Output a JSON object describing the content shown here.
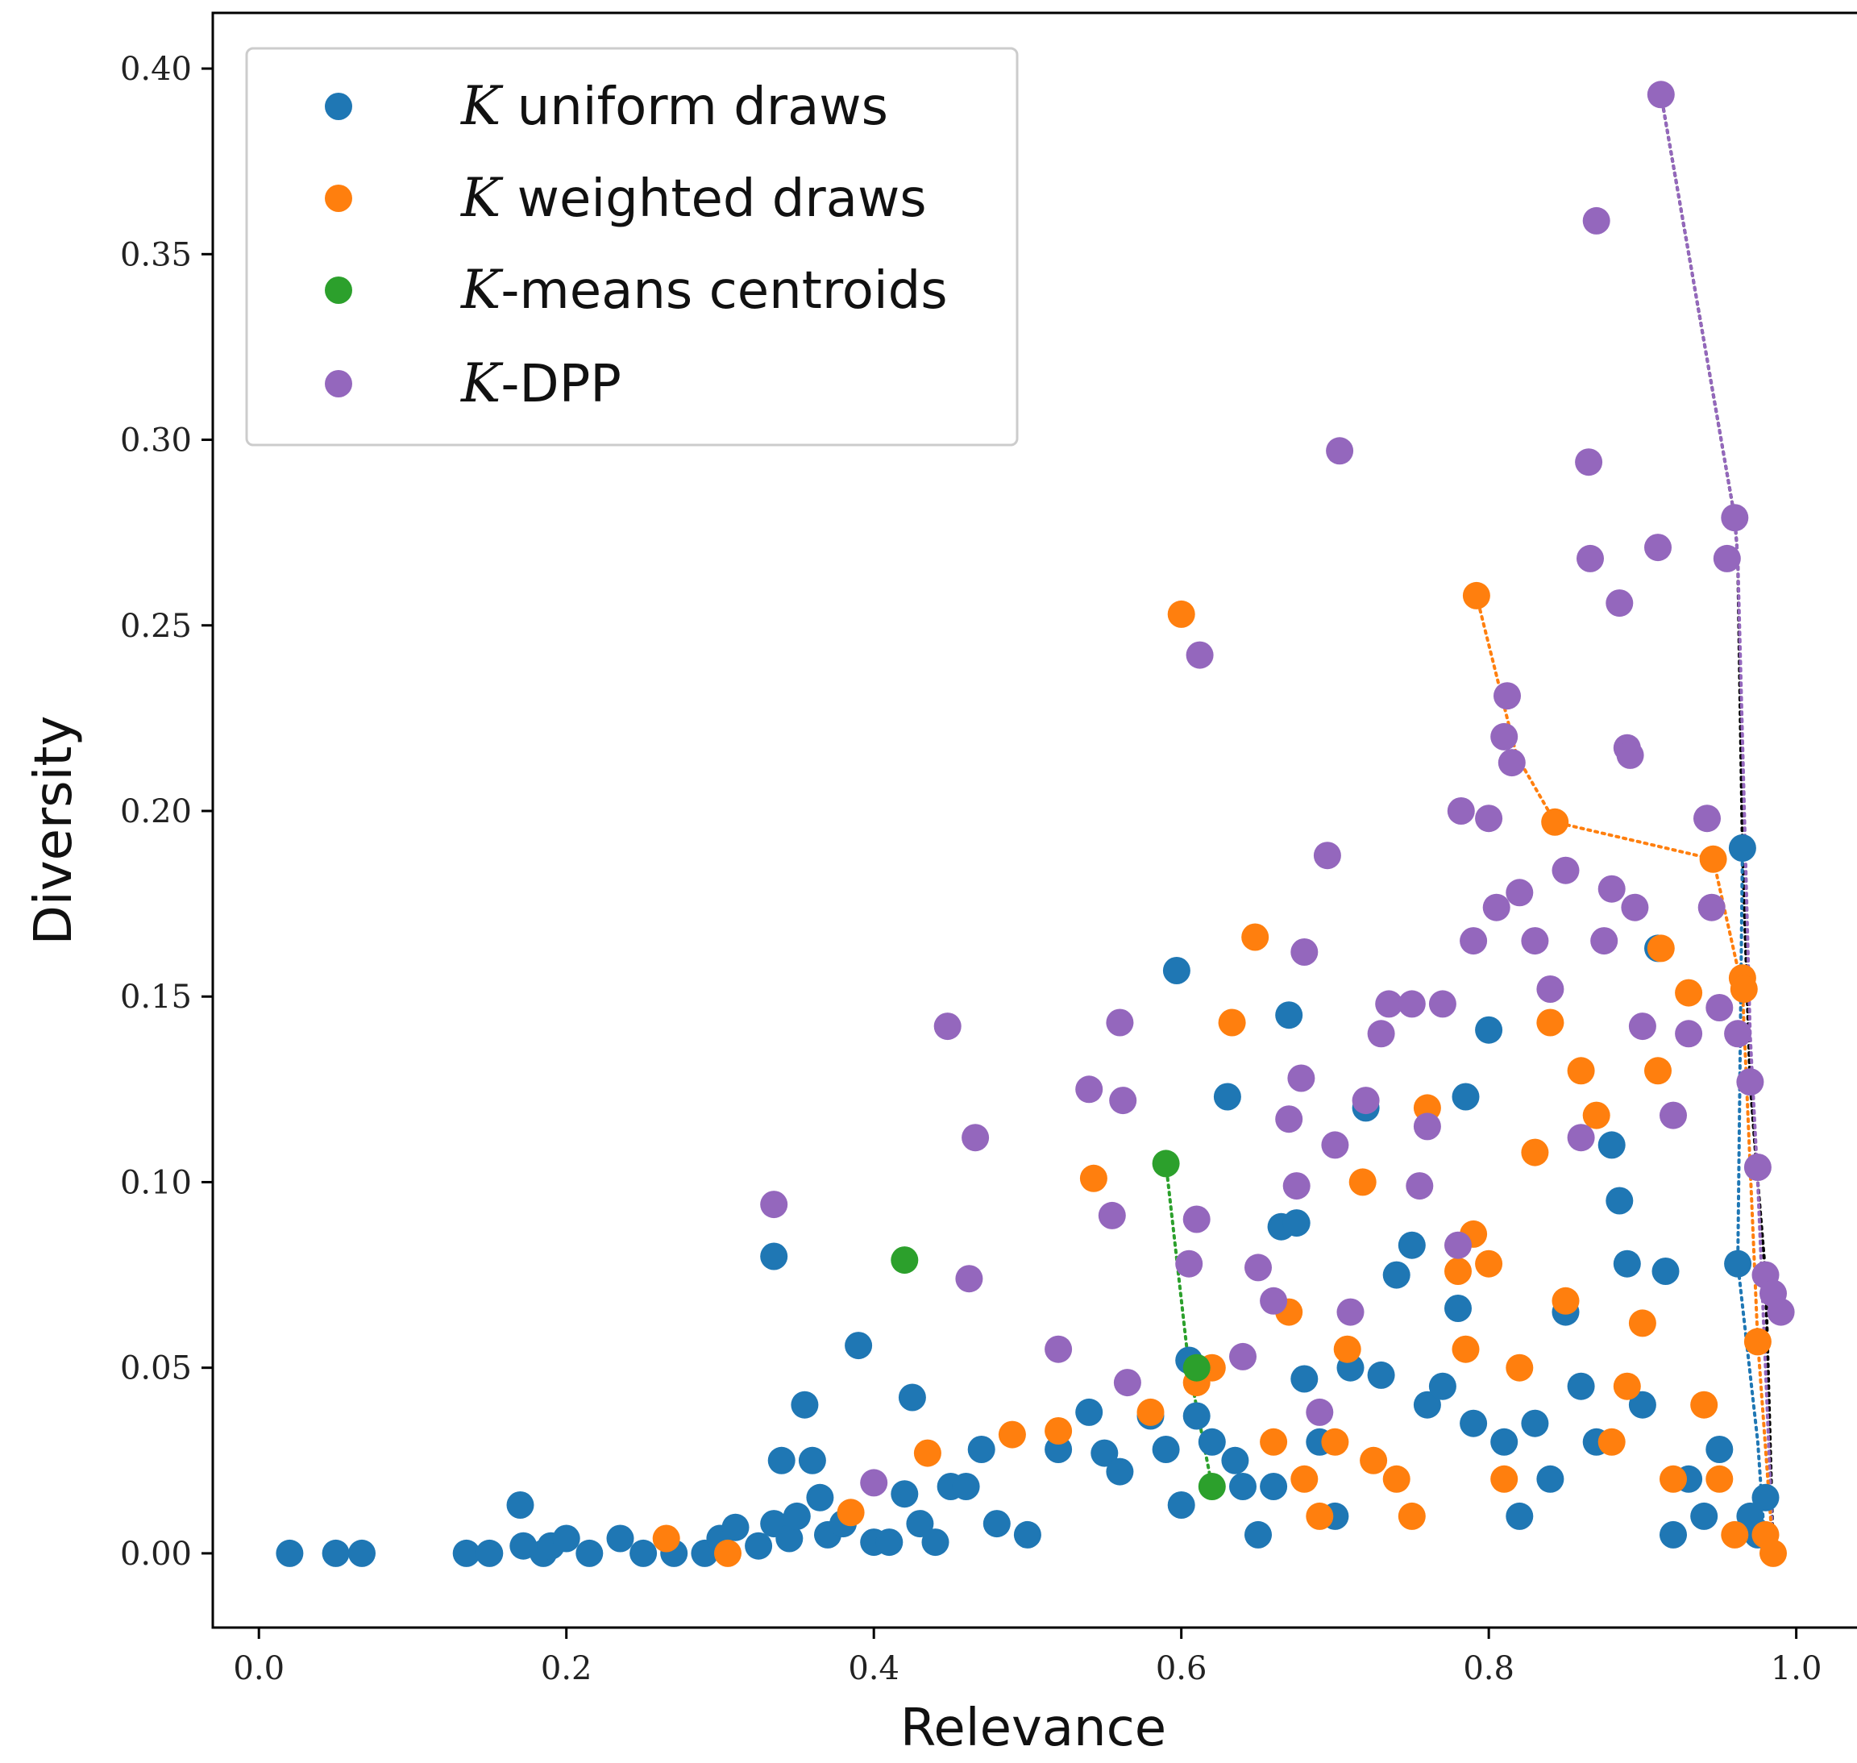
{
  "chart_data": {
    "type": "scatter",
    "xlabel": "Relevance",
    "ylabel": "Diversity",
    "xlim": [
      -0.03,
      1.05
    ],
    "ylim": [
      -0.02,
      0.415
    ],
    "xticks": [
      "0.0",
      "0.2",
      "0.4",
      "0.6",
      "0.8",
      "1.0"
    ],
    "yticks": [
      "0.00",
      "0.05",
      "0.10",
      "0.15",
      "0.20",
      "0.25",
      "0.30",
      "0.35",
      "0.40"
    ],
    "grid": false,
    "legend_position": "top-left",
    "series": [
      {
        "name": "K uniform draws",
        "legend_italic": "K",
        "legend_text": " uniform draws",
        "color": "#1f77b4",
        "points": [
          [
            0.02,
            0.0
          ],
          [
            0.05,
            0.0
          ],
          [
            0.067,
            0.0
          ],
          [
            0.135,
            0.0
          ],
          [
            0.15,
            0.0
          ],
          [
            0.17,
            0.013
          ],
          [
            0.172,
            0.002
          ],
          [
            0.185,
            0.0
          ],
          [
            0.19,
            0.002
          ],
          [
            0.2,
            0.004
          ],
          [
            0.215,
            0.0
          ],
          [
            0.235,
            0.004
          ],
          [
            0.25,
            0.0
          ],
          [
            0.27,
            0.0
          ],
          [
            0.29,
            0.0
          ],
          [
            0.3,
            0.004
          ],
          [
            0.31,
            0.007
          ],
          [
            0.325,
            0.002
          ],
          [
            0.335,
            0.008
          ],
          [
            0.335,
            0.08
          ],
          [
            0.34,
            0.025
          ],
          [
            0.345,
            0.004
          ],
          [
            0.35,
            0.01
          ],
          [
            0.355,
            0.04
          ],
          [
            0.36,
            0.025
          ],
          [
            0.365,
            0.015
          ],
          [
            0.37,
            0.005
          ],
          [
            0.38,
            0.008
          ],
          [
            0.39,
            0.056
          ],
          [
            0.4,
            0.003
          ],
          [
            0.41,
            0.003
          ],
          [
            0.42,
            0.016
          ],
          [
            0.425,
            0.042
          ],
          [
            0.43,
            0.008
          ],
          [
            0.44,
            0.003
          ],
          [
            0.45,
            0.018
          ],
          [
            0.46,
            0.018
          ],
          [
            0.47,
            0.028
          ],
          [
            0.48,
            0.008
          ],
          [
            0.5,
            0.005
          ],
          [
            0.52,
            0.028
          ],
          [
            0.54,
            0.038
          ],
          [
            0.55,
            0.027
          ],
          [
            0.56,
            0.022
          ],
          [
            0.58,
            0.037
          ],
          [
            0.59,
            0.028
          ],
          [
            0.597,
            0.157
          ],
          [
            0.6,
            0.013
          ],
          [
            0.605,
            0.052
          ],
          [
            0.61,
            0.037
          ],
          [
            0.62,
            0.03
          ],
          [
            0.63,
            0.123
          ],
          [
            0.635,
            0.025
          ],
          [
            0.64,
            0.018
          ],
          [
            0.65,
            0.005
          ],
          [
            0.66,
            0.018
          ],
          [
            0.665,
            0.088
          ],
          [
            0.67,
            0.145
          ],
          [
            0.675,
            0.089
          ],
          [
            0.68,
            0.047
          ],
          [
            0.69,
            0.03
          ],
          [
            0.7,
            0.01
          ],
          [
            0.71,
            0.05
          ],
          [
            0.72,
            0.12
          ],
          [
            0.73,
            0.048
          ],
          [
            0.74,
            0.075
          ],
          [
            0.75,
            0.083
          ],
          [
            0.76,
            0.04
          ],
          [
            0.77,
            0.045
          ],
          [
            0.78,
            0.066
          ],
          [
            0.785,
            0.123
          ],
          [
            0.79,
            0.035
          ],
          [
            0.8,
            0.141
          ],
          [
            0.81,
            0.03
          ],
          [
            0.82,
            0.01
          ],
          [
            0.83,
            0.035
          ],
          [
            0.84,
            0.02
          ],
          [
            0.85,
            0.065
          ],
          [
            0.86,
            0.045
          ],
          [
            0.87,
            0.03
          ],
          [
            0.88,
            0.11
          ],
          [
            0.885,
            0.095
          ],
          [
            0.89,
            0.078
          ],
          [
            0.9,
            0.04
          ],
          [
            0.91,
            0.163
          ],
          [
            0.915,
            0.076
          ],
          [
            0.92,
            0.005
          ],
          [
            0.93,
            0.02
          ],
          [
            0.94,
            0.01
          ],
          [
            0.95,
            0.028
          ],
          [
            0.962,
            0.078
          ],
          [
            0.965,
            0.19
          ],
          [
            0.97,
            0.01
          ],
          [
            0.975,
            0.005
          ],
          [
            0.98,
            0.015
          ]
        ]
      },
      {
        "name": "K weighted draws",
        "legend_italic": "K",
        "legend_text": " weighted draws",
        "color": "#ff7f0e",
        "points": [
          [
            0.265,
            0.004
          ],
          [
            0.305,
            0.0
          ],
          [
            0.385,
            0.011
          ],
          [
            0.435,
            0.027
          ],
          [
            0.49,
            0.032
          ],
          [
            0.52,
            0.033
          ],
          [
            0.543,
            0.101
          ],
          [
            0.58,
            0.038
          ],
          [
            0.6,
            0.253
          ],
          [
            0.61,
            0.046
          ],
          [
            0.62,
            0.05
          ],
          [
            0.633,
            0.143
          ],
          [
            0.648,
            0.166
          ],
          [
            0.66,
            0.03
          ],
          [
            0.67,
            0.065
          ],
          [
            0.68,
            0.02
          ],
          [
            0.69,
            0.01
          ],
          [
            0.7,
            0.03
          ],
          [
            0.708,
            0.055
          ],
          [
            0.718,
            0.1
          ],
          [
            0.725,
            0.025
          ],
          [
            0.74,
            0.02
          ],
          [
            0.75,
            0.01
          ],
          [
            0.76,
            0.12
          ],
          [
            0.78,
            0.076
          ],
          [
            0.785,
            0.055
          ],
          [
            0.79,
            0.086
          ],
          [
            0.792,
            0.258
          ],
          [
            0.8,
            0.078
          ],
          [
            0.81,
            0.02
          ],
          [
            0.82,
            0.05
          ],
          [
            0.83,
            0.108
          ],
          [
            0.84,
            0.143
          ],
          [
            0.843,
            0.197
          ],
          [
            0.85,
            0.068
          ],
          [
            0.86,
            0.13
          ],
          [
            0.87,
            0.118
          ],
          [
            0.88,
            0.03
          ],
          [
            0.89,
            0.045
          ],
          [
            0.9,
            0.062
          ],
          [
            0.91,
            0.13
          ],
          [
            0.912,
            0.163
          ],
          [
            0.92,
            0.02
          ],
          [
            0.93,
            0.151
          ],
          [
            0.94,
            0.04
          ],
          [
            0.946,
            0.187
          ],
          [
            0.95,
            0.02
          ],
          [
            0.96,
            0.005
          ],
          [
            0.965,
            0.155
          ],
          [
            0.966,
            0.152
          ],
          [
            0.975,
            0.057
          ],
          [
            0.98,
            0.005
          ],
          [
            0.985,
            0.0
          ]
        ]
      },
      {
        "name": "K-means centroids",
        "legend_italic": "K",
        "legend_text": "-means centroids",
        "color": "#2ca02c",
        "points": [
          [
            0.42,
            0.079
          ],
          [
            0.59,
            0.105
          ],
          [
            0.61,
            0.05
          ],
          [
            0.62,
            0.018
          ]
        ]
      },
      {
        "name": "K-DPP",
        "legend_italic": "K",
        "legend_text": "-DPP",
        "color": "#9467bd",
        "points": [
          [
            0.335,
            0.094
          ],
          [
            0.4,
            0.019
          ],
          [
            0.448,
            0.142
          ],
          [
            0.462,
            0.074
          ],
          [
            0.466,
            0.112
          ],
          [
            0.52,
            0.055
          ],
          [
            0.54,
            0.125
          ],
          [
            0.555,
            0.091
          ],
          [
            0.56,
            0.143
          ],
          [
            0.562,
            0.122
          ],
          [
            0.565,
            0.046
          ],
          [
            0.605,
            0.078
          ],
          [
            0.61,
            0.09
          ],
          [
            0.612,
            0.242
          ],
          [
            0.64,
            0.053
          ],
          [
            0.65,
            0.077
          ],
          [
            0.66,
            0.068
          ],
          [
            0.67,
            0.117
          ],
          [
            0.675,
            0.099
          ],
          [
            0.678,
            0.128
          ],
          [
            0.68,
            0.162
          ],
          [
            0.69,
            0.038
          ],
          [
            0.695,
            0.188
          ],
          [
            0.7,
            0.11
          ],
          [
            0.703,
            0.297
          ],
          [
            0.71,
            0.065
          ],
          [
            0.72,
            0.122
          ],
          [
            0.73,
            0.14
          ],
          [
            0.735,
            0.148
          ],
          [
            0.75,
            0.148
          ],
          [
            0.755,
            0.099
          ],
          [
            0.76,
            0.115
          ],
          [
            0.77,
            0.148
          ],
          [
            0.78,
            0.083
          ],
          [
            0.782,
            0.2
          ],
          [
            0.79,
            0.165
          ],
          [
            0.8,
            0.198
          ],
          [
            0.805,
            0.174
          ],
          [
            0.81,
            0.22
          ],
          [
            0.812,
            0.231
          ],
          [
            0.815,
            0.213
          ],
          [
            0.82,
            0.178
          ],
          [
            0.83,
            0.165
          ],
          [
            0.84,
            0.152
          ],
          [
            0.85,
            0.184
          ],
          [
            0.86,
            0.112
          ],
          [
            0.865,
            0.294
          ],
          [
            0.866,
            0.268
          ],
          [
            0.87,
            0.359
          ],
          [
            0.875,
            0.165
          ],
          [
            0.88,
            0.179
          ],
          [
            0.885,
            0.256
          ],
          [
            0.89,
            0.217
          ],
          [
            0.892,
            0.215
          ],
          [
            0.895,
            0.174
          ],
          [
            0.9,
            0.142
          ],
          [
            0.91,
            0.271
          ],
          [
            0.912,
            0.393
          ],
          [
            0.92,
            0.118
          ],
          [
            0.93,
            0.14
          ],
          [
            0.942,
            0.198
          ],
          [
            0.945,
            0.174
          ],
          [
            0.95,
            0.147
          ],
          [
            0.955,
            0.268
          ],
          [
            0.96,
            0.279
          ],
          [
            0.962,
            0.14
          ],
          [
            0.97,
            0.127
          ],
          [
            0.975,
            0.104
          ],
          [
            0.98,
            0.075
          ],
          [
            0.985,
            0.07
          ],
          [
            0.99,
            0.065
          ]
        ]
      }
    ],
    "connector_lines": [
      {
        "color": "#000000",
        "points": [
          [
            0.912,
            0.393
          ],
          [
            0.96,
            0.279
          ],
          [
            0.962,
            0.268
          ],
          [
            0.965,
            0.19
          ],
          [
            0.97,
            0.127
          ],
          [
            0.975,
            0.1
          ],
          [
            0.98,
            0.075
          ],
          [
            0.985,
            0.0
          ]
        ]
      },
      {
        "color": "#9467bd",
        "points": [
          [
            0.912,
            0.393
          ],
          [
            0.96,
            0.279
          ],
          [
            0.962,
            0.268
          ],
          [
            0.97,
            0.14
          ],
          [
            0.975,
            0.1
          ],
          [
            0.985,
            0.0
          ]
        ]
      },
      {
        "color": "#ff7f0e",
        "points": [
          [
            0.792,
            0.258
          ],
          [
            0.818,
            0.215
          ],
          [
            0.843,
            0.197
          ],
          [
            0.946,
            0.187
          ],
          [
            0.965,
            0.152
          ],
          [
            0.975,
            0.057
          ],
          [
            0.985,
            0.0
          ]
        ]
      },
      {
        "color": "#1f77b4",
        "points": [
          [
            0.965,
            0.19
          ],
          [
            0.962,
            0.078
          ],
          [
            0.975,
            0.03
          ],
          [
            0.98,
            0.0
          ]
        ]
      },
      {
        "color": "#2ca02c",
        "points": [
          [
            0.59,
            0.105
          ],
          [
            0.605,
            0.05
          ],
          [
            0.62,
            0.018
          ]
        ]
      }
    ]
  }
}
